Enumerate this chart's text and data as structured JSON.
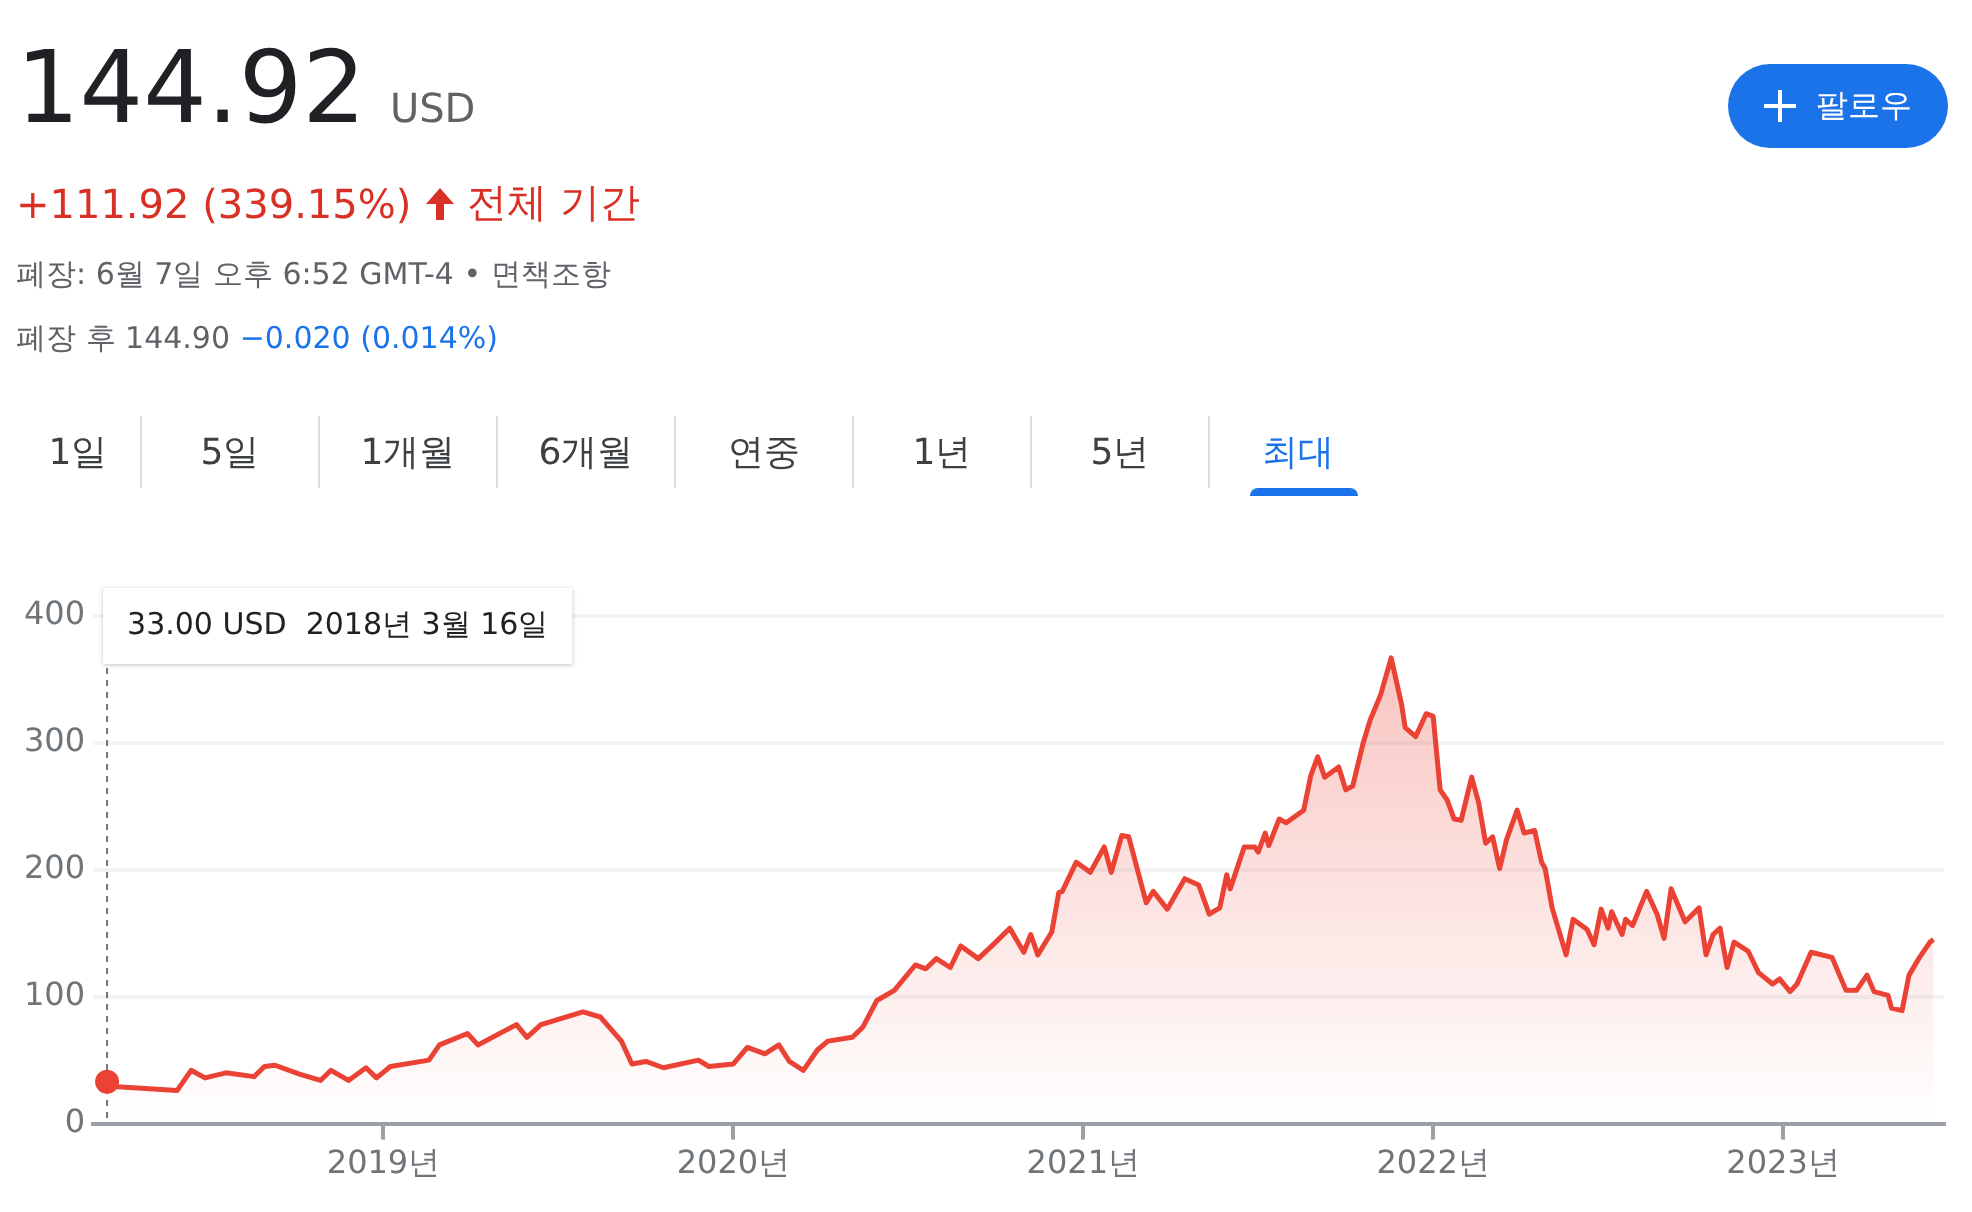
{
  "chart_data": {
    "type": "area",
    "title": "144.92",
    "annotations": [
      "USD",
      "+111.92 (339.15%)",
      "전체 기간",
      "폐장: 6월 7일 오후 6:52 GMT-4 • 면책조항",
      "폐장 후 144.90",
      "−0.020 (0.014%)",
      "1일",
      "5일",
      "1개월",
      "6개월",
      "연중",
      "1년",
      "5년",
      "최대",
      "팔로우",
      "33.00 USD  2018년 3월 16일"
    ],
    "ref_lines": [
      {
        "axis": "x",
        "value": 2018.21,
        "color": "#70757a",
        "line_style": "dashed"
      }
    ],
    "x": [
      2018.21,
      2018.24,
      2018.41,
      2018.45,
      2018.49,
      2018.55,
      2018.63,
      2018.66,
      2018.69,
      2018.76,
      2018.82,
      2018.85,
      2018.9,
      2018.95,
      2018.98,
      2019.02,
      2019.13,
      2019.16,
      2019.24,
      2019.27,
      2019.38,
      2019.41,
      2019.45,
      2019.57,
      2019.62,
      2019.68,
      2019.71,
      2019.75,
      2019.8,
      2019.9,
      2019.93,
      2020.0,
      2020.04,
      2020.09,
      2020.13,
      2020.16,
      2020.2,
      2020.24,
      2020.27,
      2020.34,
      2020.37,
      2020.41,
      2020.46,
      2020.52,
      2020.55,
      2020.58,
      2020.62,
      2020.65,
      2020.7,
      2020.75,
      2020.79,
      2020.83,
      2020.85,
      2020.87,
      2020.91,
      2020.93,
      2020.94,
      2020.98,
      2021.02,
      2021.06,
      2021.08,
      2021.11,
      2021.13,
      2021.18,
      2021.2,
      2021.24,
      2021.29,
      2021.33,
      2021.36,
      2021.39,
      2021.41,
      2021.42,
      2021.46,
      2021.49,
      2021.5,
      2021.52,
      2021.53,
      2021.56,
      2021.58,
      2021.62,
      2021.63,
      2021.65,
      2021.67,
      2021.69,
      2021.73,
      2021.75,
      2021.77,
      2021.8,
      2021.82,
      2021.85,
      2021.88,
      2021.91,
      2021.92,
      2021.95,
      2021.98,
      2022.0,
      2022.02,
      2022.04,
      2022.06,
      2022.08,
      2022.11,
      2022.13,
      2022.15,
      2022.17,
      2022.19,
      2022.21,
      2022.24,
      2022.26,
      2022.29,
      2022.31,
      2022.32,
      2022.34,
      2022.38,
      2022.4,
      2022.44,
      2022.46,
      2022.48,
      2022.5,
      2022.51,
      2022.54,
      2022.55,
      2022.57,
      2022.61,
      2022.64,
      2022.66,
      2022.68,
      2022.72,
      2022.76,
      2022.78,
      2022.8,
      2022.82,
      2022.84,
      2022.86,
      2022.9,
      2022.93,
      2022.97,
      2022.99,
      2023.02,
      2023.04,
      2023.08,
      2023.14,
      2023.18,
      2023.21,
      2023.24,
      2023.26,
      2023.3,
      2023.31,
      2023.34,
      2023.36,
      2023.39,
      2023.42,
      2023.43
    ],
    "series": [
      {
        "color": "#ea4335",
        "values": [
          33,
          29,
          26,
          42,
          36,
          40,
          37,
          45,
          46,
          39,
          34,
          42,
          34,
          44,
          36,
          45,
          50,
          62,
          71,
          62,
          78,
          68,
          78,
          88,
          84,
          65,
          47,
          49,
          44,
          50,
          45,
          47,
          60,
          55,
          62,
          49,
          42,
          58,
          65,
          68,
          76,
          97,
          105,
          125,
          122,
          130,
          123,
          140,
          130,
          143,
          154,
          135,
          149,
          133,
          151,
          182,
          183,
          206,
          198,
          218,
          198,
          227,
          226,
          174,
          183,
          169,
          193,
          188,
          165,
          170,
          196,
          185,
          218,
          218,
          214,
          229,
          219,
          240,
          237,
          245,
          247,
          274,
          289,
          273,
          281,
          263,
          266,
          300,
          318,
          338,
          367,
          330,
          312,
          305,
          323,
          321,
          263,
          255,
          240,
          239,
          273,
          253,
          221,
          226,
          201,
          224,
          247,
          229,
          231,
          206,
          201,
          170,
          133,
          161,
          153,
          141,
          169,
          154,
          167,
          149,
          161,
          156,
          183,
          165,
          146,
          185,
          159,
          170,
          133,
          149,
          154,
          123,
          143,
          136,
          119,
          110,
          114,
          104,
          110,
          135,
          131,
          105,
          105,
          117,
          104,
          101,
          91,
          89,
          117,
          131,
          143,
          145
        ]
      }
    ],
    "xlim": [
      2018.17,
      2023.46
    ],
    "xticks": [
      {
        "value": 2019,
        "label": "2019년"
      },
      {
        "value": 2020,
        "label": "2020년"
      },
      {
        "value": 2021,
        "label": "2021년"
      },
      {
        "value": 2022,
        "label": "2022년"
      },
      {
        "value": 2023,
        "label": "2023년"
      }
    ],
    "ylim": [
      0,
      400
    ],
    "yticks": [
      0,
      100,
      200,
      300,
      400
    ],
    "grid": "y"
  }
}
